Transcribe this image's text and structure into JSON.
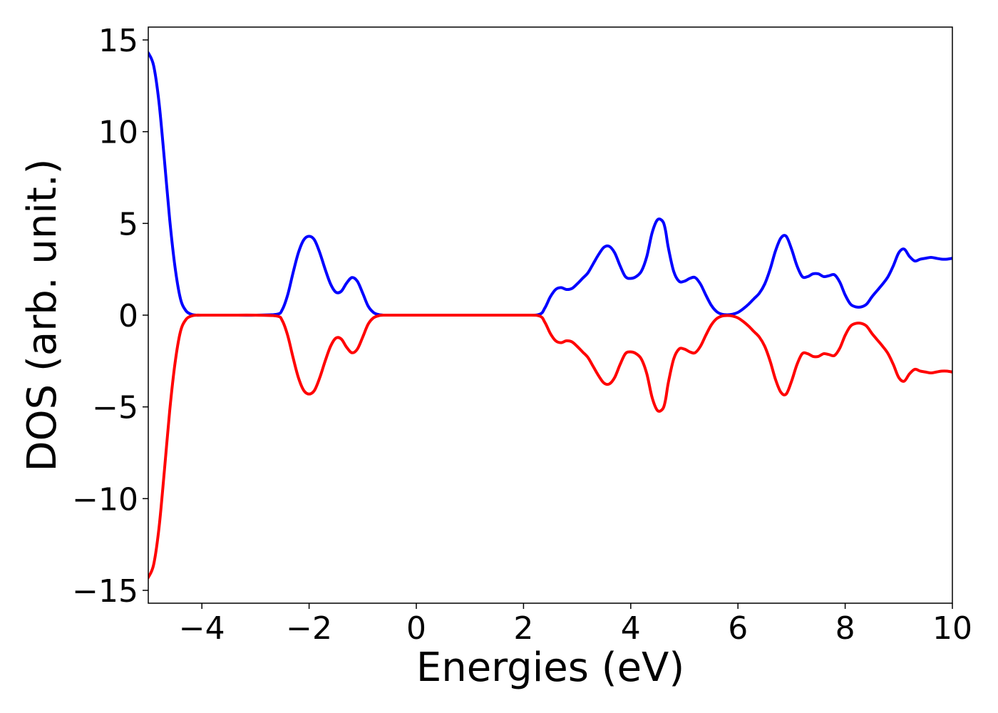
{
  "chart_data": {
    "type": "line",
    "title": "",
    "xlabel": "Energies (eV)",
    "ylabel": "DOS (arb. unit.)",
    "xlim": [
      -5,
      10
    ],
    "ylim": [
      -15.7,
      15.7
    ],
    "grid": false,
    "legend": "none",
    "xticks": [
      -4,
      -2,
      0,
      2,
      4,
      6,
      8,
      10
    ],
    "xtick_labels": [
      "−4",
      "−2",
      "0",
      "2",
      "4",
      "6",
      "8",
      "10"
    ],
    "yticks": [
      -15,
      -10,
      -5,
      0,
      5,
      10,
      15
    ],
    "ytick_labels": [
      "−15",
      "−10",
      "−5",
      "0",
      "5",
      "10",
      "15"
    ],
    "series": [
      {
        "color": "#0000ff",
        "x": [
          -5,
          -4.9,
          -4.8,
          -4.7,
          -4.6,
          -4.5,
          -4.4,
          -4.3,
          -4.2,
          -4.1,
          -4.0,
          -3.5,
          -3.0,
          -2.6,
          -2.5,
          -2.4,
          -2.3,
          -2.2,
          -2.1,
          -2.0,
          -1.9,
          -1.8,
          -1.7,
          -1.6,
          -1.5,
          -1.4,
          -1.3,
          -1.2,
          -1.1,
          -1.0,
          -0.9,
          -0.8,
          -0.7,
          -0.6,
          -0.5,
          -0.3,
          0,
          1.0,
          2.0,
          2.3,
          2.4,
          2.5,
          2.6,
          2.7,
          2.8,
          2.9,
          3.0,
          3.1,
          3.2,
          3.3,
          3.4,
          3.5,
          3.6,
          3.7,
          3.8,
          3.9,
          4.0,
          4.1,
          4.2,
          4.3,
          4.4,
          4.5,
          4.6,
          4.65,
          4.7,
          4.8,
          4.9,
          5.0,
          5.1,
          5.2,
          5.3,
          5.4,
          5.5,
          5.6,
          5.7,
          5.8,
          5.9,
          6.0,
          6.1,
          6.2,
          6.3,
          6.4,
          6.5,
          6.6,
          6.7,
          6.8,
          6.9,
          7.0,
          7.1,
          7.2,
          7.3,
          7.4,
          7.5,
          7.6,
          7.7,
          7.8,
          7.9,
          8.0,
          8.1,
          8.2,
          8.3,
          8.4,
          8.5,
          8.6,
          8.7,
          8.8,
          8.9,
          9.0,
          9.1,
          9.2,
          9.3,
          9.4,
          9.5,
          9.6,
          9.7,
          9.8,
          9.9,
          10.0
        ],
        "y": [
          14.3,
          13.6,
          11.6,
          8.5,
          5.2,
          2.6,
          0.9,
          0.25,
          0.05,
          0.0,
          0.0,
          0.0,
          0.0,
          0.05,
          0.3,
          1.1,
          2.3,
          3.4,
          4.1,
          4.3,
          4.1,
          3.4,
          2.5,
          1.7,
          1.25,
          1.3,
          1.75,
          2.05,
          1.85,
          1.2,
          0.5,
          0.15,
          0.03,
          0.0,
          0.0,
          0.0,
          0.0,
          0.0,
          0.0,
          0.05,
          0.4,
          1.0,
          1.4,
          1.5,
          1.4,
          1.45,
          1.7,
          2.0,
          2.3,
          2.8,
          3.3,
          3.7,
          3.75,
          3.4,
          2.7,
          2.1,
          2.0,
          2.1,
          2.4,
          3.2,
          4.5,
          5.2,
          5.1,
          4.6,
          3.7,
          2.4,
          1.85,
          1.85,
          2.0,
          2.05,
          1.7,
          1.1,
          0.55,
          0.2,
          0.05,
          0.02,
          0.05,
          0.15,
          0.35,
          0.6,
          0.9,
          1.2,
          1.7,
          2.5,
          3.5,
          4.2,
          4.3,
          3.6,
          2.7,
          2.1,
          2.1,
          2.25,
          2.25,
          2.1,
          2.15,
          2.2,
          1.8,
          1.1,
          0.6,
          0.45,
          0.45,
          0.6,
          1.0,
          1.35,
          1.7,
          2.1,
          2.7,
          3.4,
          3.6,
          3.2,
          2.95,
          3.05,
          3.1,
          3.15,
          3.1,
          3.05,
          3.05,
          3.1
        ]
      },
      {
        "color": "#ff0000",
        "x": [
          -5,
          -4.9,
          -4.8,
          -4.7,
          -4.6,
          -4.5,
          -4.4,
          -4.3,
          -4.2,
          -4.1,
          -4.0,
          -3.5,
          -3.0,
          -2.6,
          -2.5,
          -2.4,
          -2.3,
          -2.2,
          -2.1,
          -2.0,
          -1.9,
          -1.8,
          -1.7,
          -1.6,
          -1.5,
          -1.4,
          -1.3,
          -1.2,
          -1.1,
          -1.0,
          -0.9,
          -0.8,
          -0.7,
          -0.6,
          -0.5,
          -0.3,
          0,
          1.0,
          2.0,
          2.3,
          2.4,
          2.5,
          2.6,
          2.7,
          2.8,
          2.9,
          3.0,
          3.1,
          3.2,
          3.3,
          3.4,
          3.5,
          3.6,
          3.7,
          3.8,
          3.9,
          4.0,
          4.1,
          4.2,
          4.3,
          4.4,
          4.5,
          4.6,
          4.65,
          4.7,
          4.8,
          4.9,
          5.0,
          5.1,
          5.2,
          5.3,
          5.4,
          5.5,
          5.6,
          5.7,
          5.8,
          5.9,
          6.0,
          6.1,
          6.2,
          6.3,
          6.4,
          6.5,
          6.6,
          6.7,
          6.8,
          6.9,
          7.0,
          7.1,
          7.2,
          7.3,
          7.4,
          7.5,
          7.6,
          7.7,
          7.8,
          7.9,
          8.0,
          8.1,
          8.2,
          8.3,
          8.4,
          8.5,
          8.6,
          8.7,
          8.8,
          8.9,
          9.0,
          9.1,
          9.2,
          9.3,
          9.4,
          9.5,
          9.6,
          9.7,
          9.8,
          9.9,
          10.0
        ],
        "y": [
          -14.3,
          -13.6,
          -11.6,
          -8.5,
          -5.2,
          -2.6,
          -0.9,
          -0.25,
          -0.05,
          0.0,
          0.0,
          0.0,
          0.0,
          -0.05,
          -0.3,
          -1.1,
          -2.3,
          -3.4,
          -4.1,
          -4.3,
          -4.1,
          -3.4,
          -2.5,
          -1.7,
          -1.25,
          -1.3,
          -1.75,
          -2.05,
          -1.85,
          -1.2,
          -0.5,
          -0.15,
          -0.03,
          0.0,
          0.0,
          0.0,
          0.0,
          0.0,
          0.0,
          -0.05,
          -0.4,
          -1.0,
          -1.4,
          -1.5,
          -1.4,
          -1.45,
          -1.7,
          -2.0,
          -2.3,
          -2.8,
          -3.3,
          -3.7,
          -3.75,
          -3.4,
          -2.7,
          -2.1,
          -2.0,
          -2.1,
          -2.4,
          -3.2,
          -4.5,
          -5.2,
          -5.1,
          -4.6,
          -3.7,
          -2.4,
          -1.85,
          -1.85,
          -2.0,
          -2.05,
          -1.7,
          -1.1,
          -0.55,
          -0.2,
          -0.05,
          -0.02,
          -0.05,
          -0.15,
          -0.35,
          -0.6,
          -0.9,
          -1.2,
          -1.7,
          -2.5,
          -3.5,
          -4.2,
          -4.3,
          -3.6,
          -2.7,
          -2.1,
          -2.1,
          -2.25,
          -2.25,
          -2.1,
          -2.15,
          -2.2,
          -1.8,
          -1.1,
          -0.6,
          -0.45,
          -0.45,
          -0.6,
          -1.0,
          -1.35,
          -1.7,
          -2.1,
          -2.7,
          -3.4,
          -3.6,
          -3.2,
          -2.95,
          -3.05,
          -3.1,
          -3.15,
          -3.1,
          -3.05,
          -3.05,
          -3.1
        ]
      }
    ]
  }
}
